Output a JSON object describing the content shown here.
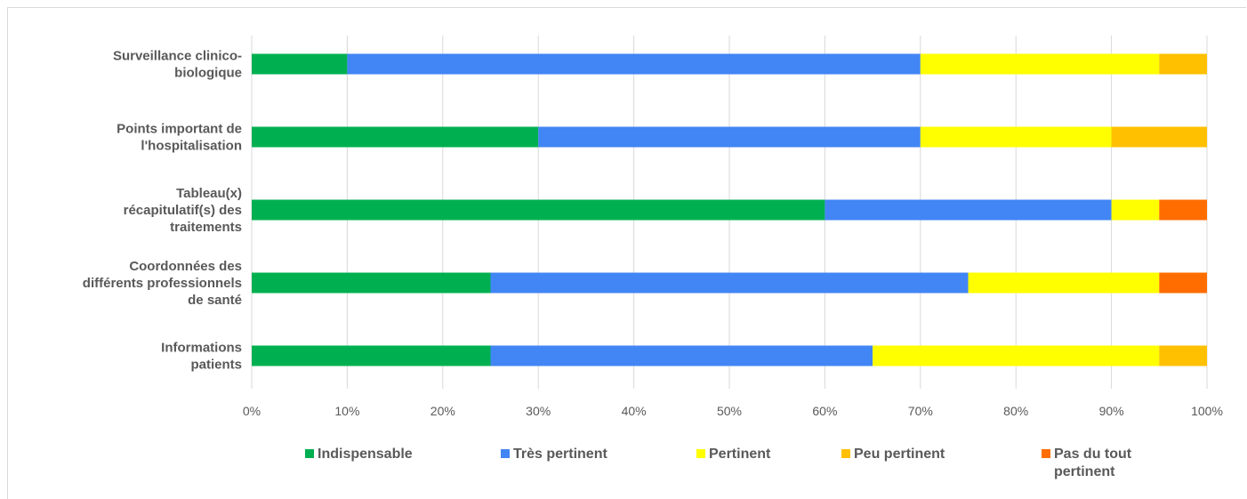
{
  "chart_data": {
    "type": "bar",
    "orientation": "horizontal",
    "stacked": "percent",
    "categories": [
      [
        "Surveillance clinico-",
        "biologique"
      ],
      [
        "Points important de",
        "l'hospitalisation"
      ],
      [
        "Tableau(x)",
        "récapitulatif(s) des",
        "traitements"
      ],
      [
        "Coordonnées des",
        "différents professionnels",
        "de santé"
      ],
      [
        "Informations",
        "patients"
      ]
    ],
    "series": [
      {
        "name": "Indispensable",
        "color": "#00b050",
        "values": [
          10,
          30,
          60,
          25,
          25
        ]
      },
      {
        "name": "Très pertinent",
        "color": "#4285f4",
        "values": [
          60,
          40,
          30,
          50,
          40
        ]
      },
      {
        "name": "Pertinent",
        "color": "#ffff00",
        "values": [
          25,
          20,
          5,
          20,
          30
        ]
      },
      {
        "name": "Peu pertinent",
        "color": "#ffc000",
        "values": [
          5,
          10,
          0,
          0,
          5
        ]
      },
      {
        "name": "Pas du tout pertinent",
        "color": "#ff6d01",
        "values": [
          0,
          0,
          5,
          5,
          0
        ]
      }
    ],
    "legend": [
      {
        "lines": [
          "Indispensable"
        ],
        "color": "#00b050"
      },
      {
        "lines": [
          "Très pertinent"
        ],
        "color": "#4285f4"
      },
      {
        "lines": [
          "Pertinent"
        ],
        "color": "#ffff00"
      },
      {
        "lines": [
          "Peu pertinent"
        ],
        "color": "#ffc000"
      },
      {
        "lines": [
          "Pas du tout",
          "pertinent"
        ],
        "color": "#ff6d01"
      }
    ],
    "xlim": [
      0,
      100
    ],
    "xticks": [
      "0%",
      "10%",
      "20%",
      "30%",
      "40%",
      "50%",
      "60%",
      "70%",
      "80%",
      "90%",
      "100%"
    ],
    "grid": true,
    "legend_position": "bottom"
  }
}
